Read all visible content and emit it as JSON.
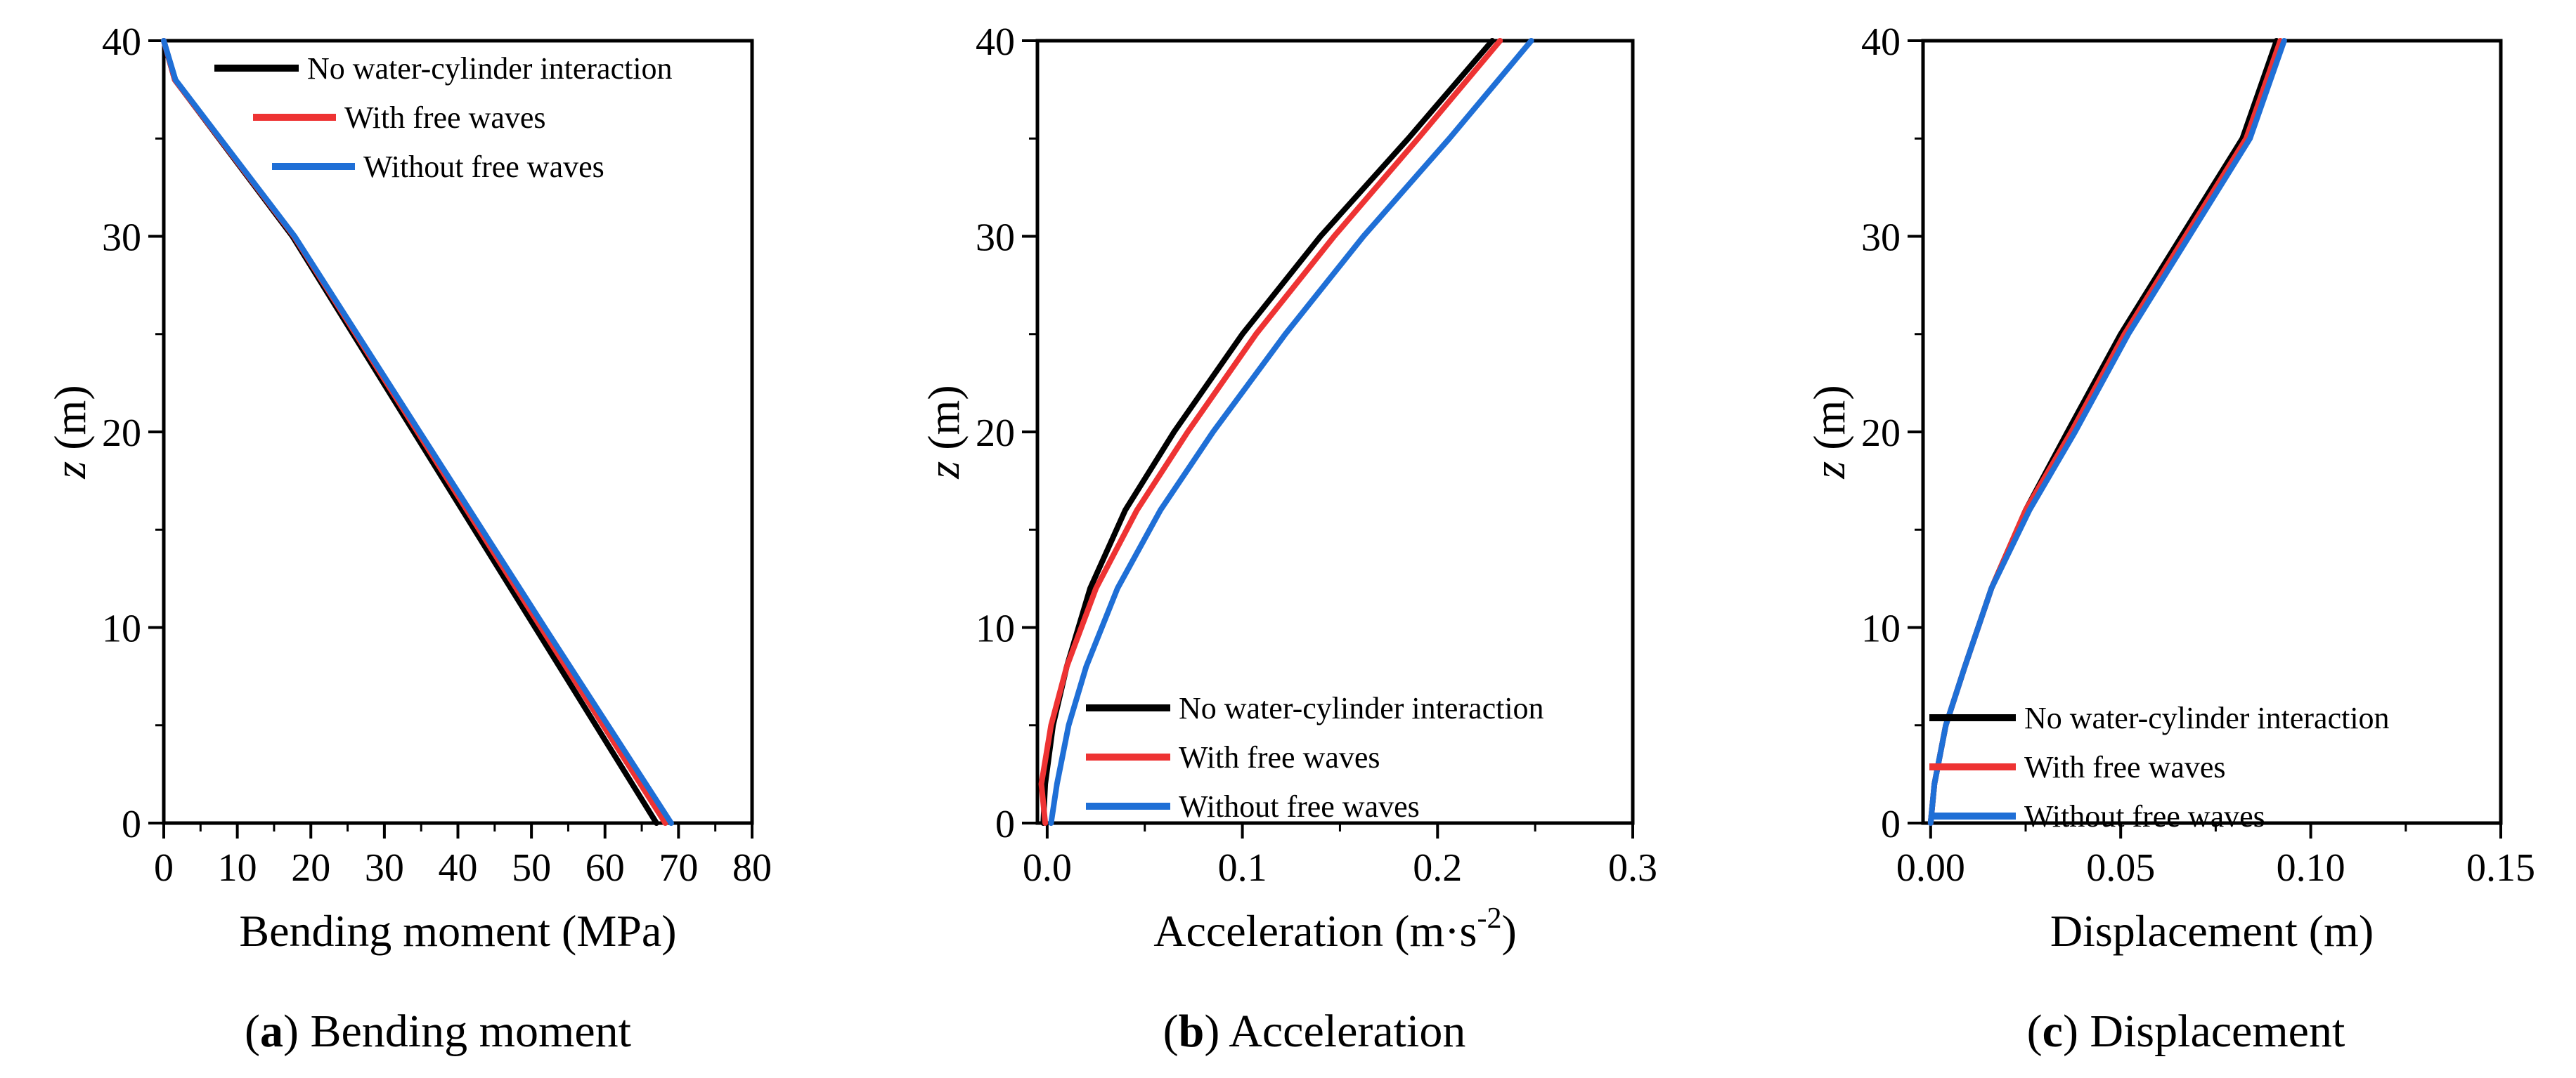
{
  "chart_data": [
    {
      "type": "line",
      "panel": "a",
      "caption": {
        "letter": "a",
        "title": "Bending moment"
      },
      "xlabel": "Bending moment (MPa)",
      "ylabel_var": "z",
      "ylabel_unit": " (m)",
      "xlim": [
        0,
        80
      ],
      "ylim": [
        0,
        40
      ],
      "xticks": [
        0,
        10,
        20,
        30,
        40,
        50,
        60,
        70,
        80
      ],
      "xtick_labels": [
        "0",
        "10",
        "20",
        "30",
        "40",
        "50",
        "60",
        "70",
        "80"
      ],
      "yticks": [
        0,
        10,
        20,
        30,
        40
      ],
      "ytick_labels": [
        "0",
        "10",
        "20",
        "30",
        "40"
      ],
      "legend_position": "top-left",
      "series": [
        {
          "name": "No water-cylinder interaction",
          "color": "#000000",
          "x": [
            67.0,
            50.5,
            34.0,
            17.5,
            1.5,
            0.0
          ],
          "y": [
            0,
            10,
            20,
            30,
            38,
            40
          ]
        },
        {
          "name": "With free waves",
          "color": "#ee3333",
          "x": [
            68.2,
            51.3,
            34.5,
            17.7,
            1.5,
            0.0
          ],
          "y": [
            0,
            10,
            20,
            30,
            38,
            40
          ]
        },
        {
          "name": "Without free waves",
          "color": "#1f6fd6",
          "x": [
            69.0,
            51.8,
            34.8,
            17.8,
            1.6,
            0.0
          ],
          "y": [
            0,
            10,
            20,
            30,
            38,
            40
          ]
        }
      ]
    },
    {
      "type": "line",
      "panel": "b",
      "caption": {
        "letter": "b",
        "title": "Acceleration"
      },
      "xlabel": "Acceleration (m·s",
      "xlabel_sup": "-2",
      "xlabel_end": ")",
      "ylabel_var": "z",
      "ylabel_unit": " (m)",
      "xlim": [
        -0.005,
        0.3
      ],
      "ylim": [
        0,
        40
      ],
      "xticks": [
        0.0,
        0.1,
        0.2,
        0.3
      ],
      "xtick_labels": [
        "0.0",
        "0.1",
        "0.2",
        "0.3"
      ],
      "yticks": [
        0,
        10,
        20,
        30,
        40
      ],
      "ytick_labels": [
        "0",
        "10",
        "20",
        "30",
        "40"
      ],
      "legend_position": "bottom-right",
      "series": [
        {
          "name": "No water-cylinder interaction",
          "color": "#000000",
          "x": [
            -0.002,
            -0.001,
            0.003,
            0.01,
            0.022,
            0.04,
            0.065,
            0.1,
            0.14,
            0.185,
            0.228
          ],
          "y": [
            0,
            2,
            5,
            8,
            12,
            16,
            20,
            25,
            30,
            35,
            40
          ]
        },
        {
          "name": "With free waves",
          "color": "#ee3333",
          "x": [
            -0.001,
            -0.003,
            0.002,
            0.01,
            0.025,
            0.046,
            0.072,
            0.107,
            0.147,
            0.19,
            0.232
          ],
          "y": [
            0,
            2,
            5,
            8,
            12,
            16,
            20,
            25,
            30,
            35,
            40
          ]
        },
        {
          "name": "Without free waves",
          "color": "#1f6fd6",
          "x": [
            0.002,
            0.005,
            0.011,
            0.02,
            0.036,
            0.058,
            0.085,
            0.122,
            0.162,
            0.206,
            0.248
          ],
          "y": [
            0,
            2,
            5,
            8,
            12,
            16,
            20,
            25,
            30,
            35,
            40
          ]
        }
      ]
    },
    {
      "type": "line",
      "panel": "c",
      "caption": {
        "letter": "c",
        "title": "Displacement"
      },
      "xlabel": "Displacement (m)",
      "ylabel_var": "z",
      "ylabel_unit": " (m)",
      "xlim": [
        -0.002,
        0.15
      ],
      "ylim": [
        0,
        40
      ],
      "xticks": [
        0.0,
        0.05,
        0.1,
        0.15
      ],
      "xtick_labels": [
        "0.00",
        "0.05",
        "0.10",
        "0.15"
      ],
      "yticks": [
        0,
        10,
        20,
        30,
        40
      ],
      "ytick_labels": [
        "0",
        "10",
        "20",
        "30",
        "40"
      ],
      "legend_position": "bottom-right",
      "series": [
        {
          "name": "No water-cylinder interaction",
          "color": "#000000",
          "x": [
            0.0,
            0.001,
            0.004,
            0.009,
            0.016,
            0.025,
            0.036,
            0.05,
            0.066,
            0.082,
            0.091
          ],
          "y": [
            0,
            2,
            5,
            8,
            12,
            16,
            20,
            25,
            30,
            35,
            40
          ]
        },
        {
          "name": "With free waves",
          "color": "#ee3333",
          "x": [
            0.0,
            0.001,
            0.004,
            0.009,
            0.016,
            0.025,
            0.037,
            0.051,
            0.067,
            0.083,
            0.092
          ],
          "y": [
            0,
            2,
            5,
            8,
            12,
            16,
            20,
            25,
            30,
            35,
            40
          ]
        },
        {
          "name": "Without free waves",
          "color": "#1f6fd6",
          "x": [
            0.0,
            0.001,
            0.004,
            0.009,
            0.016,
            0.026,
            0.038,
            0.052,
            0.068,
            0.084,
            0.093
          ],
          "y": [
            0,
            2,
            5,
            8,
            12,
            16,
            20,
            25,
            30,
            35,
            40
          ]
        }
      ]
    }
  ]
}
